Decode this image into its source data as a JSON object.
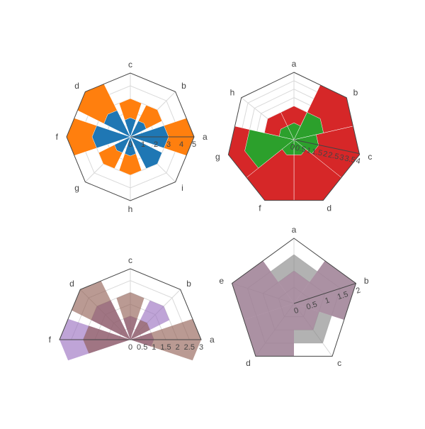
{
  "colors": {
    "blue": "#1f77b4",
    "orange": "#ff7f0e",
    "green": "#2ca02c",
    "red": "#d62728",
    "purple": "#9467bd",
    "brown": "#8c564b",
    "pink": "#e377c2",
    "gray": "#7f7f7f",
    "grid": "#d9d9d9",
    "frame": "#444444"
  },
  "chart_data": [
    {
      "type": "barpolar",
      "shape": "polygon",
      "title": "",
      "categories": [
        "a",
        "b",
        "c",
        "d",
        "f",
        "g",
        "h",
        "i"
      ],
      "direction": "counterclockwise",
      "radial_ticks": [
        "0",
        "1",
        "2",
        "3",
        "4",
        "5"
      ],
      "radial_range": [
        0,
        5
      ],
      "series": [
        {
          "color_key": "orange",
          "values": [
            5,
            3,
            3,
            5,
            5,
            3,
            3,
            3
          ]
        },
        {
          "color_key": "blue",
          "values": [
            3,
            1.5,
            1.5,
            2.5,
            3,
            1.5,
            1.5,
            3
          ]
        }
      ]
    },
    {
      "type": "barpolar",
      "shape": "polygon",
      "title": "",
      "categories": [
        "a",
        "b",
        "c",
        "d",
        "f",
        "g",
        "h"
      ],
      "direction": "clockwise",
      "radial_ticks": [
        "0",
        "0.5",
        "1",
        "1.5",
        "2",
        "2.5",
        "3",
        "3.5",
        "4"
      ],
      "radial_range": [
        0,
        4
      ],
      "series": [
        {
          "color_key": "red",
          "values": [
            2,
            4,
            4,
            4,
            4,
            4,
            2
          ]
        },
        {
          "color_key": "green",
          "values": [
            1,
            2,
            1.5,
            1,
            1,
            3,
            1
          ]
        }
      ]
    },
    {
      "type": "barpolar",
      "shape": "polygon",
      "title": "",
      "categories": [
        "a",
        "b",
        "c",
        "d",
        "f"
      ],
      "direction": "counterclockwise",
      "sector": [
        0,
        180
      ],
      "radial_ticks": [
        "0",
        "0.5",
        "1",
        "1.5",
        "2",
        "2.5",
        "3"
      ],
      "radial_range": [
        0,
        3
      ],
      "series": [
        {
          "color_key": "purple",
          "values": [
            1,
            2,
            1,
            2,
            3
          ]
        },
        {
          "color_key": "brown",
          "values": [
            3,
            1,
            2,
            3,
            2
          ]
        }
      ]
    },
    {
      "type": "barpolar",
      "shape": "polygon",
      "title": "",
      "categories": [
        "a",
        "b",
        "c",
        "d",
        "e"
      ],
      "direction": "clockwise",
      "radial_ticks": [
        "0",
        "0.5",
        "1",
        "1.5",
        "2"
      ],
      "radial_range": [
        0,
        2
      ],
      "series": [
        {
          "color_key": "pink",
          "values": [
            1,
            2,
            1,
            2,
            2
          ]
        },
        {
          "color_key": "gray",
          "values": [
            1.5,
            2,
            1.5,
            2,
            2
          ]
        }
      ]
    }
  ]
}
